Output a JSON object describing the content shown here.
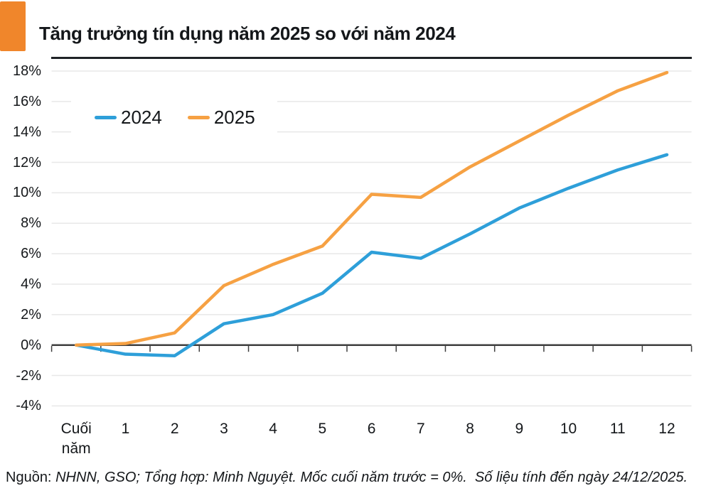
{
  "header": {
    "title": "Tăng trưởng tín dụng năm 2025 so với năm 2024",
    "accent_color": "#F0862B"
  },
  "legend": {
    "items": [
      {
        "label": "2024",
        "color": "#2E9FD9"
      },
      {
        "label": "2025",
        "color": "#F6A143"
      }
    ]
  },
  "footer": {
    "source_label": "Nguồn:",
    "source_text": "NHNN, GSO; Tổng hợp: Minh Nguyệt. Mốc cuối năm trước = 0%.  Số liệu tính đến ngày 24/12/2025."
  },
  "chart_data": {
    "type": "line",
    "title": "Tăng trưởng tín dụng năm 2025 so với năm 2024",
    "categories": [
      "Cuối năm",
      "1",
      "2",
      "3",
      "4",
      "5",
      "6",
      "7",
      "8",
      "9",
      "10",
      "11",
      "12"
    ],
    "series": [
      {
        "name": "2024",
        "color": "#2E9FD9",
        "values": [
          0,
          -0.6,
          -0.7,
          1.4,
          2.0,
          3.4,
          6.1,
          5.7,
          7.3,
          9.0,
          10.3,
          11.5,
          12.5
        ]
      },
      {
        "name": "2025",
        "color": "#F6A143",
        "values": [
          0,
          0.1,
          0.8,
          3.9,
          5.3,
          6.5,
          9.9,
          9.7,
          11.7,
          13.4,
          15.1,
          16.7,
          17.9
        ]
      }
    ],
    "xlabel": "",
    "ylabel": "",
    "ylim": [
      -4,
      18
    ],
    "y_ticks": [
      18,
      16,
      14,
      12,
      10,
      8,
      6,
      4,
      2,
      0,
      -2,
      -4
    ],
    "y_tick_format": "percent",
    "baseline_value": 0,
    "grid": true,
    "legend_position": "top-left",
    "colors": {
      "gridline": "#E8E8E8",
      "axis": "#3F3F3F"
    }
  }
}
